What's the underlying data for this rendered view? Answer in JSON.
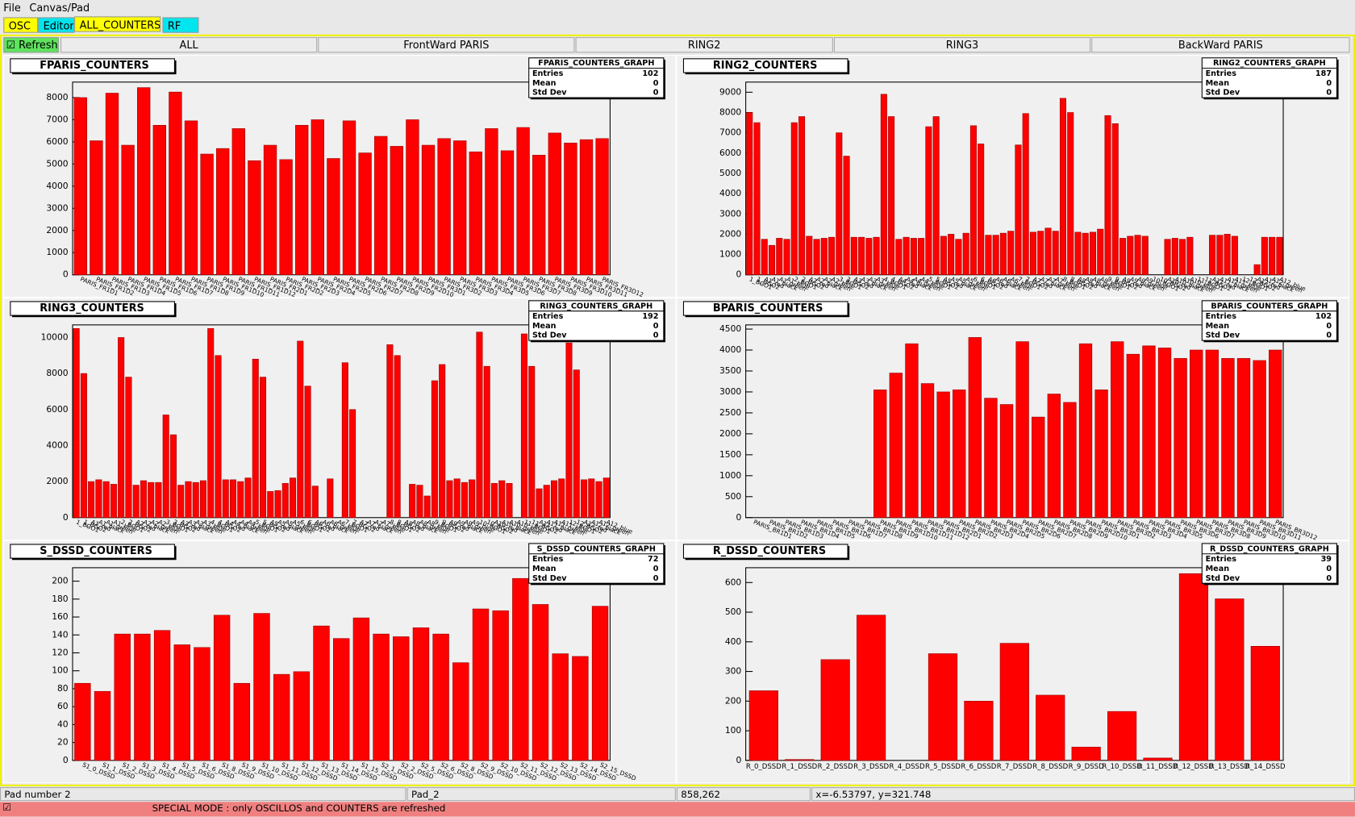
{
  "menu": [
    "File",
    "Canvas/Pad"
  ],
  "tabs": [
    "OSC",
    "Editor",
    "ALL_COUNTERS",
    "RF"
  ],
  "refresh": "Refresh",
  "buttons": [
    "ALL",
    "FrontWard PARIS",
    "RING2",
    "RING3",
    "BackWard PARIS"
  ],
  "status": [
    "Pad number 2",
    "Pad_2",
    "858,262",
    "x=-6.53797, y=321.748"
  ],
  "banner": "SPECIAL MODE : only OSCILLOS and COUNTERS are refreshed",
  "chart_data": [
    {
      "type": "bar",
      "title": "FPARIS_COUNTERS",
      "color": "#ff0000",
      "stats": {
        "title": "FPARIS_COUNTERS_GRAPH",
        "rows": [
          [
            "Entries",
            102
          ],
          [
            "Mean",
            0
          ],
          [
            "Std Dev",
            0
          ]
        ]
      },
      "categories": [
        "PARIS_FR1D1",
        "PARIS_FR1D2",
        "PARIS_FR1D3",
        "PARIS_FR1D4",
        "PARIS_FR1D5",
        "PARIS_FR1D6",
        "PARIS_FR1D7",
        "PARIS_FR1D8",
        "PARIS_FR1D9",
        "PARIS_FR1D10",
        "PARIS_FR1D11",
        "PARIS_FR1D12",
        "PARIS_FR2D1",
        "PARIS_FR2D2",
        "PARIS_FR2D3",
        "PARIS_FR2D4",
        "PARIS_FR2D5",
        "PARIS_FR2D6",
        "PARIS_FR2D7",
        "PARIS_FR2D8",
        "PARIS_FR2D9",
        "PARIS_FR2D10",
        "PARIS_FR3D1",
        "PARIS_FR3D2",
        "PARIS_FR3D3",
        "PARIS_FR3D4",
        "PARIS_FR3D5",
        "PARIS_FR3D6",
        "PARIS_FR3D7",
        "PARIS_FR3D8",
        "PARIS_FR3D9",
        "PARIS_FR3D10",
        "PARIS_FR3D11",
        "PARIS_FR3D12"
      ],
      "values": [
        8000,
        6050,
        8200,
        5850,
        8450,
        6750,
        8250,
        6950,
        5450,
        5700,
        6600,
        5150,
        5850,
        5200,
        6750,
        7000,
        5250,
        6950,
        5500,
        6250,
        5800,
        7000,
        5850,
        6150,
        6050,
        5550,
        6600,
        5600,
        6650,
        5400,
        6400,
        5950,
        6100,
        6150
      ],
      "ylim": [
        0,
        8700
      ],
      "yticks": [
        0,
        1000,
        2000,
        3000,
        4000,
        5000,
        6000,
        7000,
        8000
      ]
    },
    {
      "type": "bar",
      "title": "RING2_COUNTERS",
      "color": "#ff0000",
      "stats": {
        "title": "RING2_COUNTERS_GRAPH",
        "rows": [
          [
            "Entries",
            187
          ],
          [
            "Mean",
            0
          ],
          [
            "Std Dev",
            0
          ]
        ]
      },
      "categories": [
        "1_BGO1",
        "1_BGO2",
        "A1_red",
        "A1_black",
        "A1_green",
        "A1_blue",
        "2_BGO1",
        "2_BGO2",
        "A2_red",
        "A2_black",
        "A2_green",
        "A2_blue",
        "3_BGO1",
        "3_BGO2",
        "A3_red",
        "A3_black",
        "A3_green",
        "A3_blue",
        "4_BGO1",
        "4_BGO2",
        "A4_red",
        "A4_black",
        "A4_green",
        "A4_blue",
        "5_BGO1",
        "5_BGO2",
        "A5_red",
        "A5_black",
        "A5_green",
        "A5_blue",
        "6_BGO1",
        "6_BGO2",
        "A6_red",
        "A6_black",
        "A6_green",
        "A6_blue",
        "7_BGO1",
        "7_BGO2",
        "A7_red",
        "A7_black",
        "A7_green",
        "A7_blue",
        "8_BGO1",
        "8_BGO2",
        "A8_red",
        "A8_black",
        "A8_green",
        "A8_blue",
        "9_BGO1",
        "9_BGO2",
        "A9_red",
        "A9_black",
        "A9_green",
        "A9_blue",
        "10_BGO1",
        "10_BGO2",
        "A10_red",
        "A10_black",
        "A10_green",
        "A10_blue",
        "11_BGO1",
        "11_BGO2",
        "A11_red",
        "A11_black",
        "A11_green",
        "A11_blue",
        "12_BGO1",
        "12_BGO2",
        "A12_red",
        "A12_black",
        "A12_green",
        "A12_blue"
      ],
      "values": [
        8000,
        7500,
        1750,
        1450,
        1800,
        1750,
        7500,
        7800,
        1900,
        1750,
        1800,
        1850,
        7000,
        5850,
        1850,
        1850,
        1800,
        1850,
        8900,
        7800,
        1750,
        1850,
        1800,
        1800,
        7300,
        7800,
        1900,
        2000,
        1750,
        2050,
        7350,
        6450,
        1950,
        1950,
        2050,
        2150,
        6400,
        7950,
        2100,
        2150,
        2300,
        2150,
        8700,
        8000,
        2100,
        2050,
        2100,
        2250,
        7850,
        7450,
        1800,
        1900,
        1950,
        1900,
        0,
        0,
        1750,
        1800,
        1750,
        1850,
        0,
        0,
        1950,
        1950,
        2000,
        1900,
        0,
        0,
        500,
        1850,
        1850,
        1850
      ],
      "ylim": [
        0,
        9500
      ],
      "yticks": [
        0,
        1000,
        2000,
        3000,
        4000,
        5000,
        6000,
        7000,
        8000,
        9000
      ]
    },
    {
      "type": "bar",
      "title": "RING3_COUNTERS",
      "color": "#ff0000",
      "stats": {
        "title": "RING3_COUNTERS_GRAPH",
        "rows": [
          [
            "Entries",
            192
          ],
          [
            "Mean",
            0
          ],
          [
            "Std Dev",
            0
          ]
        ]
      },
      "categories": [
        "1_BGO1",
        "1_BGO2",
        "A1_red",
        "A1_black",
        "A1_green",
        "A1_blue",
        "2_BGO1",
        "2_BGO2",
        "A2_red",
        "A2_black",
        "A2_green",
        "A2_blue",
        "3_BGO1",
        "3_BGO2",
        "A3_red",
        "A3_black",
        "A3_green",
        "A3_blue",
        "4_BGO1",
        "4_BGO2",
        "A4_red",
        "A4_black",
        "A4_green",
        "A4_blue",
        "5_BGO1",
        "5_BGO2",
        "A5_red",
        "A5_black",
        "A5_green",
        "A5_blue",
        "6_BGO1",
        "6_BGO2",
        "A6_red",
        "A6_black",
        "A6_green",
        "A6_blue",
        "7_BGO1",
        "7_BGO2",
        "A7_red",
        "A7_black",
        "A7_green",
        "A7_blue",
        "8_BGO1",
        "8_BGO2",
        "A8_red",
        "A8_black",
        "A8_green",
        "A8_blue",
        "9_BGO1",
        "9_BGO2",
        "A9_red",
        "A9_black",
        "A9_green",
        "A9_blue",
        "10_BGO1",
        "10_BGO2",
        "A10_red",
        "A10_black",
        "A10_green",
        "A10_blue",
        "11_BGO1",
        "11_BGO2",
        "A11_red",
        "A11_black",
        "A11_green",
        "A11_blue",
        "12_BGO1",
        "12_BGO2",
        "A12_red",
        "A12_black",
        "A12_green",
        "A12_blue"
      ],
      "values": [
        10500,
        8000,
        2000,
        2100,
        2000,
        1850,
        10000,
        7800,
        1800,
        2050,
        1950,
        1950,
        5700,
        4600,
        1800,
        2000,
        1950,
        2050,
        10500,
        9000,
        2100,
        2100,
        2000,
        2200,
        8800,
        7800,
        1450,
        1500,
        1900,
        2200,
        9800,
        7300,
        1750,
        0,
        2150,
        0,
        8600,
        6000,
        0,
        0,
        0,
        0,
        9600,
        9000,
        0,
        1850,
        1800,
        1200,
        7600,
        8500,
        2050,
        2150,
        1950,
        2100,
        10300,
        8400,
        1900,
        2050,
        1900,
        0,
        10200,
        8400,
        1600,
        1800,
        2050,
        2150,
        9700,
        8200,
        2100,
        2150,
        2000,
        2200
      ],
      "ylim": [
        0,
        10700
      ],
      "yticks": [
        0,
        2000,
        4000,
        6000,
        8000,
        10000
      ]
    },
    {
      "type": "bar",
      "title": "BPARIS_COUNTERS",
      "color": "#ff0000",
      "stats": {
        "title": "BPARIS_COUNTERS_GRAPH",
        "rows": [
          [
            "Entries",
            102
          ],
          [
            "Mean",
            0
          ],
          [
            "Std Dev",
            0
          ]
        ]
      },
      "categories": [
        "PARIS_BR1D1",
        "PARIS_BR1D2",
        "PARIS_BR1D3",
        "PARIS_BR1D4",
        "PARIS_BR1D5",
        "PARIS_BR1D6",
        "PARIS_BR1D7",
        "PARIS_BR1D8",
        "PARIS_BR1D9",
        "PARIS_BR1D10",
        "PARIS_BR1D11",
        "PARIS_BR1D12",
        "PARIS_BR2D1",
        "PARIS_BR2D2",
        "PARIS_BR2D3",
        "PARIS_BR2D4",
        "PARIS_BR2D5",
        "PARIS_BR2D6",
        "PARIS_BR2D7",
        "PARIS_BR2D8",
        "PARIS_BR2D9",
        "PARIS_BR2D10",
        "PARIS_BR3D1",
        "PARIS_BR3D2",
        "PARIS_BR3D3",
        "PARIS_BR3D4",
        "PARIS_BR3D5",
        "PARIS_BR3D6",
        "PARIS_BR3D7",
        "PARIS_BR3D8",
        "PARIS_BR3D9",
        "PARIS_BR3D10",
        "PARIS_BR3D11",
        "PARIS_BR3D12"
      ],
      "values": [
        0,
        0,
        0,
        0,
        0,
        0,
        0,
        0,
        3050,
        3450,
        4150,
        3200,
        3000,
        3050,
        4300,
        2850,
        2700,
        4200,
        2400,
        2950,
        2750,
        4150,
        3050,
        4200,
        3900,
        4100,
        4050,
        3800,
        4000,
        4000,
        3800,
        3800,
        3750,
        4000
      ],
      "ylim": [
        0,
        4600
      ],
      "yticks": [
        0,
        500,
        1000,
        1500,
        2000,
        2500,
        3000,
        3500,
        4000,
        4500
      ]
    },
    {
      "type": "bar",
      "title": "S_DSSD_COUNTERS",
      "color": "#ff0000",
      "stats": {
        "title": "S_DSSD_COUNTERS_GRAPH",
        "rows": [
          [
            "Entries",
            72
          ],
          [
            "Mean",
            0
          ],
          [
            "Std Dev",
            0
          ]
        ]
      },
      "categories": [
        "S1_0_DSSD",
        "S1_1_DSSD",
        "S1_2_DSSD",
        "S1_3_DSSD",
        "S1_4_DSSD",
        "S1_5_DSSD",
        "S1_6_DSSD",
        "S1_8_DSSD",
        "S1_9_DSSD",
        "S1_10_DSSD",
        "S1_11_DSSD",
        "S1_12_DSSD",
        "S1_13_DSSD",
        "S1_14_DSSD",
        "S1_15_DSSD",
        "S2_1_DSSD",
        "S2_2_DSSD",
        "S2_5_DSSD",
        "S2_6_DSSD",
        "S2_8_DSSD",
        "S2_9_DSSD",
        "S2_10_DSSD",
        "S2_11_DSSD",
        "S2_12_DSSD",
        "S2_13_DSSD",
        "S2_14_DSSD",
        "S2_15_DSSD"
      ],
      "values": [
        86,
        77,
        141,
        141,
        145,
        129,
        126,
        162,
        86,
        164,
        96,
        99,
        150,
        136,
        159,
        141,
        138,
        148,
        141,
        109,
        169,
        167,
        203,
        174,
        119,
        116,
        172
      ],
      "ylim": [
        0,
        215
      ],
      "yticks": [
        0,
        20,
        40,
        60,
        80,
        100,
        120,
        140,
        160,
        180,
        200
      ]
    },
    {
      "type": "bar",
      "title": "R_DSSD_COUNTERS",
      "color": "#ff0000",
      "stats": {
        "title": "R_DSSD_COUNTERS_GRAPH",
        "rows": [
          [
            "Entries",
            39
          ],
          [
            "Mean",
            0
          ],
          [
            "Std Dev",
            0
          ]
        ]
      },
      "categories": [
        "R_0_DSSD",
        "R_1_DSSD",
        "R_2_DSSD",
        "R_3_DSSD",
        "R_4_DSSD",
        "R_5_DSSD",
        "R_6_DSSD",
        "R_7_DSSD",
        "R_8_DSSD",
        "R_9_DSSD",
        "R_10_DSSD",
        "R_11_DSSD",
        "R_12_DSSD",
        "R_13_DSSD",
        "R_14_DSSD"
      ],
      "values": [
        235,
        3,
        340,
        490,
        0,
        360,
        200,
        395,
        220,
        45,
        165,
        8,
        630,
        545,
        385
      ],
      "ylim": [
        0,
        650
      ],
      "yticks": [
        0,
        100,
        200,
        300,
        400,
        500,
        600
      ]
    }
  ]
}
